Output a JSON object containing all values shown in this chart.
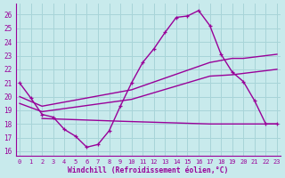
{
  "bg_color": "#c8eaec",
  "line_color": "#990099",
  "grid_color": "#a8d4d8",
  "xlabel": "Windchill (Refroidissement éolien,°C)",
  "ylim_min": 15.7,
  "ylim_max": 26.8,
  "xlim_min": -0.3,
  "xlim_max": 23.3,
  "yticks": [
    16,
    17,
    18,
    19,
    20,
    21,
    22,
    23,
    24,
    25,
    26
  ],
  "xticks": [
    0,
    1,
    2,
    3,
    4,
    5,
    6,
    7,
    8,
    9,
    10,
    11,
    12,
    13,
    14,
    15,
    16,
    17,
    18,
    19,
    20,
    21,
    22,
    23
  ],
  "main_x": [
    0,
    1,
    2,
    3,
    4,
    5,
    6,
    7,
    8,
    9,
    10,
    11,
    12,
    13,
    14,
    15,
    16,
    17,
    18,
    19,
    20,
    21,
    22,
    23
  ],
  "main_y": [
    21.0,
    19.9,
    18.7,
    18.5,
    17.6,
    17.1,
    16.3,
    16.5,
    17.5,
    19.3,
    21.0,
    22.5,
    23.5,
    24.7,
    25.8,
    25.9,
    26.3,
    25.2,
    23.1,
    21.8,
    21.1,
    19.7,
    18.0,
    18.0
  ],
  "trend_high_x": [
    0,
    2,
    10,
    17,
    19,
    20,
    23
  ],
  "trend_high_y": [
    20.0,
    19.3,
    20.5,
    22.5,
    22.8,
    22.8,
    23.1
  ],
  "trend_low_x": [
    0,
    2,
    10,
    17,
    19,
    20,
    23
  ],
  "trend_low_y": [
    19.5,
    18.9,
    19.8,
    21.5,
    21.6,
    21.7,
    22.0
  ],
  "flat_x": [
    2,
    9,
    17,
    22,
    23
  ],
  "flat_y": [
    18.4,
    18.2,
    18.0,
    18.0,
    18.0
  ]
}
